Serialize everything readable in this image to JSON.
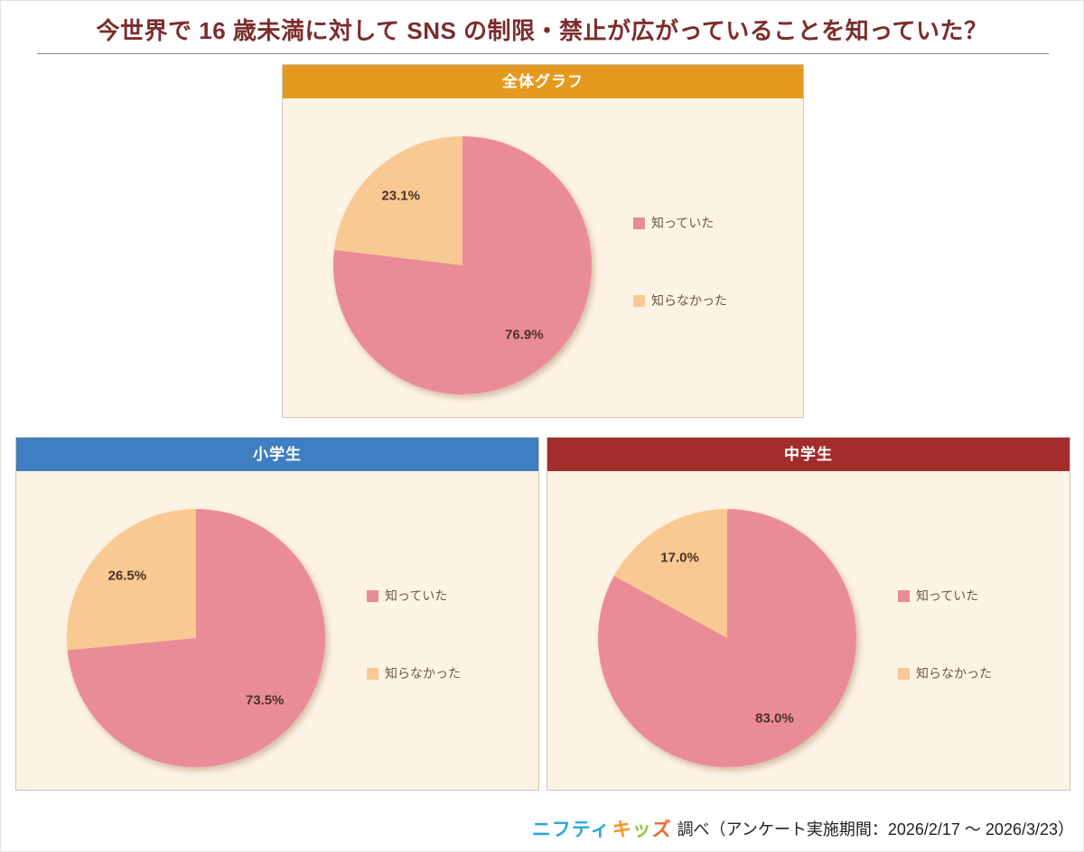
{
  "title": "今世界で 16 歳未満に対して SNS の制限・禁止が広がっていることを知っていた？",
  "legend_labels": [
    "知っていた",
    "知らなかった"
  ],
  "colors": {
    "knew": "#ea8c98",
    "did_not_know": "#f8c992",
    "title_text": "#7d2c2c",
    "panel_background": "#fdf3e4"
  },
  "chart_data": [
    {
      "type": "pie",
      "title": "全体グラフ",
      "header_color": "#e49a1e",
      "labels": [
        "知っていた",
        "知らなかった"
      ],
      "values": [
        76.9,
        23.1
      ],
      "colors": [
        "#ea8c98",
        "#f8c992"
      ],
      "legend_position": "right"
    },
    {
      "type": "pie",
      "title": "小学生",
      "header_color": "#3f7ec1",
      "labels": [
        "知っていた",
        "知らなかった"
      ],
      "values": [
        73.5,
        26.5
      ],
      "colors": [
        "#ea8c98",
        "#f8c992"
      ],
      "legend_position": "right"
    },
    {
      "type": "pie",
      "title": "中学生",
      "header_color": "#a32c2c",
      "labels": [
        "知っていた",
        "知らなかった"
      ],
      "values": [
        83.0,
        17.0
      ],
      "colors": [
        "#ea8c98",
        "#f8c992"
      ],
      "legend_position": "right"
    }
  ],
  "footer": {
    "brand_nifty": "ニフティ",
    "brand_kids": [
      "キ",
      "ッ",
      "ズ"
    ],
    "text": "調べ（アンケート実施期間：2026/2/17 ～ 2026/3/23）"
  }
}
